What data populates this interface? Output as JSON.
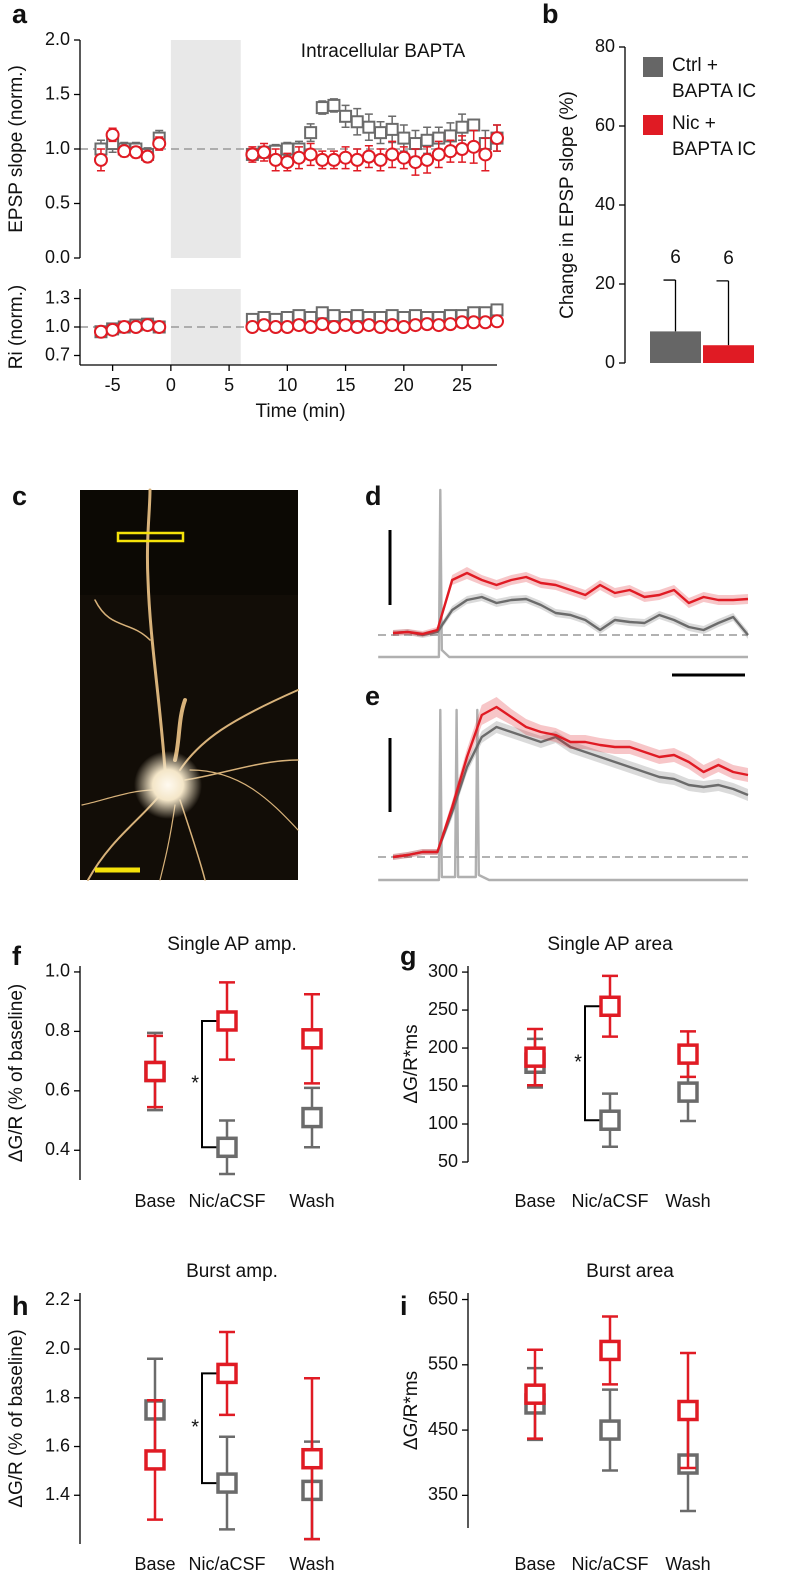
{
  "chart_data": [
    {
      "type": "scatter",
      "panel": "a",
      "ylabel": "EPSP slope (norm.)",
      "annotation": "Intracellular BAPTA",
      "x": [
        -6,
        -5,
        -4,
        -3,
        -2,
        -1,
        7,
        8,
        9,
        10,
        11,
        12,
        13,
        14,
        15,
        16,
        17,
        18,
        19,
        20,
        21,
        22,
        23,
        24,
        25,
        26,
        27,
        28
      ],
      "xlim": [
        -7.8,
        28
      ],
      "ylim": [
        0,
        2
      ],
      "yticks": [
        {
          "value": 0,
          "label": "0.0"
        },
        0.5,
        {
          "value": 1,
          "label": "1.0"
        },
        1.5,
        {
          "value": 2,
          "label": "2.0"
        }
      ],
      "shade": [
        0,
        6
      ],
      "hline": 1,
      "series": [
        {
          "color": "#6b6b6b",
          "marker": "square",
          "values": [
            1.0,
            1.05,
            1.0,
            1.0,
            0.95,
            1.1,
            0.95,
            0.97,
            0.98,
            1.0,
            1.0,
            1.15,
            1.38,
            1.4,
            1.3,
            1.25,
            1.2,
            1.15,
            1.18,
            1.1,
            1.05,
            1.08,
            1.1,
            1.12,
            1.2,
            1.22,
            1.05,
            1.1
          ],
          "errors": [
            0.08,
            0.08,
            0.06,
            0.06,
            0.06,
            0.07,
            0.05,
            0.05,
            0.06,
            0.06,
            0.07,
            0.08,
            0.06,
            0.06,
            0.1,
            0.12,
            0.12,
            0.1,
            0.12,
            0.12,
            0.12,
            0.12,
            0.1,
            0.12,
            0.12,
            0.05,
            0.12,
            0.12
          ]
        },
        {
          "color": "#e01b24",
          "marker": "circle",
          "values": [
            0.9,
            1.13,
            0.98,
            0.97,
            0.93,
            1.05,
            0.95,
            0.97,
            0.9,
            0.88,
            0.92,
            0.95,
            0.9,
            0.9,
            0.92,
            0.9,
            0.93,
            0.9,
            0.95,
            0.92,
            0.88,
            0.9,
            0.95,
            0.98,
            1.0,
            1.02,
            0.95,
            1.1
          ],
          "errors": [
            0.1,
            0.06,
            0.05,
            0.05,
            0.05,
            0.06,
            0.07,
            0.08,
            0.1,
            0.08,
            0.1,
            0.1,
            0.08,
            0.08,
            0.1,
            0.1,
            0.1,
            0.1,
            0.12,
            0.1,
            0.12,
            0.12,
            0.12,
            0.1,
            0.12,
            0.15,
            0.15,
            0.12
          ]
        }
      ]
    },
    {
      "type": "scatter",
      "ylabel": "Ri (norm.)",
      "xlabel": "Time (min)",
      "x": [
        -6,
        -5,
        -4,
        -3,
        -2,
        -1,
        7,
        8,
        9,
        10,
        11,
        12,
        13,
        14,
        15,
        16,
        17,
        18,
        19,
        20,
        21,
        22,
        23,
        24,
        25,
        26,
        27,
        28
      ],
      "xlim": [
        -7.8,
        28
      ],
      "ylim": [
        0.6,
        1.4
      ],
      "xticks": [
        -5,
        0,
        5,
        10,
        15,
        20,
        25
      ],
      "yticks": [
        0.7,
        {
          "value": 1,
          "label": "1.0"
        },
        1.3
      ],
      "shade": [
        0,
        6
      ],
      "hline": 1,
      "series": [
        {
          "color": "#6b6b6b",
          "marker": "square",
          "values": [
            0.95,
            0.98,
            1.0,
            1.02,
            1.03,
            1.0,
            1.08,
            1.1,
            1.08,
            1.1,
            1.12,
            1.1,
            1.15,
            1.12,
            1.1,
            1.12,
            1.1,
            1.1,
            1.12,
            1.1,
            1.12,
            1.1,
            1.1,
            1.12,
            1.12,
            1.15,
            1.15,
            1.18
          ],
          "errors": [
            0.05,
            0.05,
            0.05,
            0.05,
            0.05,
            0.05,
            0.05,
            0.05,
            0.05,
            0.05,
            0.05,
            0.05,
            0.05,
            0.05,
            0.05,
            0.05,
            0.05,
            0.05,
            0.05,
            0.05,
            0.05,
            0.05,
            0.05,
            0.05,
            0.05,
            0.05,
            0.05,
            0.05
          ]
        },
        {
          "color": "#e01b24",
          "marker": "circle",
          "values": [
            0.95,
            0.97,
            1.0,
            1.0,
            1.02,
            1.0,
            1.0,
            1.02,
            1.0,
            1.0,
            1.02,
            1.0,
            1.03,
            1.0,
            1.02,
            1.0,
            1.02,
            1.0,
            1.02,
            1.0,
            1.02,
            1.03,
            1.02,
            1.03,
            1.05,
            1.05,
            1.05,
            1.06
          ],
          "errors": [
            0.04,
            0.04,
            0.04,
            0.04,
            0.04,
            0.04,
            0.04,
            0.04,
            0.04,
            0.04,
            0.04,
            0.04,
            0.04,
            0.04,
            0.04,
            0.04,
            0.04,
            0.04,
            0.04,
            0.04,
            0.04,
            0.04,
            0.04,
            0.04,
            0.04,
            0.04,
            0.04,
            0.04
          ]
        }
      ]
    },
    {
      "type": "bar",
      "panel": "b",
      "ylabel": "Change in EPSP slope (%)",
      "ylim": [
        0,
        80
      ],
      "yticks": [
        0,
        20,
        40,
        60,
        80
      ],
      "series": [
        {
          "name": "Ctrl + BAPTA IC",
          "color": "#666666",
          "values": [
            8
          ],
          "errors": [
            13
          ],
          "n": [
            6
          ]
        },
        {
          "name": "Nic + BAPTA IC",
          "color": "#e01b24",
          "values": [
            4.5
          ],
          "errors": [
            16.3
          ],
          "n": [
            6
          ]
        }
      ]
    },
    {
      "type": "image",
      "panel": "c"
    },
    {
      "type": "line",
      "panel": "d",
      "x": [
        0,
        1,
        2,
        3,
        4,
        5,
        6,
        7,
        8,
        9,
        10,
        11,
        12,
        13,
        14,
        15,
        16,
        17,
        18,
        19,
        20,
        21,
        22,
        23,
        24
      ],
      "xlim": [
        0,
        24
      ],
      "ylim": [
        -0.25,
        1.45
      ],
      "hline": 0,
      "series": [
        {
          "color": "#b0b0b0",
          "x": [
            -1,
            3.1,
            3.2,
            3.3,
            3.8,
            24
          ],
          "values": [
            -0.22,
            -0.22,
            1.45,
            -0.15,
            -0.22,
            -0.22
          ]
        },
        {
          "color": "#6b6b6b",
          "values": [
            0.02,
            0.03,
            0.0,
            0.03,
            0.25,
            0.35,
            0.38,
            0.32,
            0.35,
            0.36,
            0.3,
            0.22,
            0.2,
            0.15,
            0.05,
            0.15,
            0.13,
            0.12,
            0.2,
            0.15,
            0.08,
            0.05,
            0.12,
            0.18,
            0.0
          ],
          "errors": [
            0.03,
            0.03,
            0.03,
            0.03,
            0.04,
            0.04,
            0.04,
            0.04,
            0.04,
            0.04,
            0.04,
            0.04,
            0.04,
            0.04,
            0.04,
            0.04,
            0.04,
            0.04,
            0.04,
            0.04,
            0.04,
            0.04,
            0.04,
            0.04,
            0.04
          ]
        },
        {
          "color": "#e01b24",
          "values": [
            0.02,
            0.03,
            0.01,
            0.05,
            0.55,
            0.62,
            0.55,
            0.5,
            0.55,
            0.58,
            0.52,
            0.5,
            0.45,
            0.4,
            0.5,
            0.42,
            0.45,
            0.38,
            0.4,
            0.45,
            0.32,
            0.38,
            0.35,
            0.35,
            0.36
          ],
          "errors": [
            0.03,
            0.03,
            0.03,
            0.03,
            0.05,
            0.06,
            0.05,
            0.05,
            0.05,
            0.05,
            0.05,
            0.05,
            0.05,
            0.05,
            0.05,
            0.05,
            0.05,
            0.05,
            0.05,
            0.05,
            0.05,
            0.05,
            0.05,
            0.05,
            0.05
          ]
        }
      ]
    },
    {
      "type": "line",
      "panel": "e",
      "x": [
        0,
        1,
        2,
        3,
        4,
        5,
        6,
        7,
        8,
        9,
        10,
        11,
        12,
        13,
        14,
        15,
        16,
        17,
        18,
        19,
        20,
        21,
        22,
        23,
        24
      ],
      "xlim": [
        0,
        24
      ],
      "ylim": [
        -0.25,
        1.52
      ],
      "hline": 0,
      "series": [
        {
          "color": "#b0b0b0",
          "x": [
            -1,
            3.1,
            3.2,
            3.3,
            4.2,
            4.3,
            4.4,
            5.6,
            5.7,
            5.8,
            6.5,
            24
          ],
          "values": [
            -0.23,
            -0.23,
            1.47,
            -0.2,
            -0.2,
            1.47,
            -0.2,
            -0.2,
            1.47,
            -0.18,
            -0.23,
            -0.23
          ]
        },
        {
          "color": "#6b6b6b",
          "values": [
            0.0,
            0.02,
            0.05,
            0.05,
            0.45,
            0.9,
            1.2,
            1.3,
            1.25,
            1.2,
            1.15,
            1.2,
            1.1,
            1.05,
            1.0,
            0.95,
            0.9,
            0.85,
            0.8,
            0.78,
            0.72,
            0.7,
            0.72,
            0.68,
            0.62
          ],
          "errors": [
            0.03,
            0.03,
            0.03,
            0.03,
            0.06,
            0.06,
            0.06,
            0.06,
            0.06,
            0.06,
            0.06,
            0.06,
            0.06,
            0.06,
            0.06,
            0.06,
            0.06,
            0.06,
            0.06,
            0.06,
            0.06,
            0.06,
            0.06,
            0.06,
            0.06
          ]
        },
        {
          "color": "#e01b24",
          "values": [
            0.0,
            0.02,
            0.05,
            0.05,
            0.5,
            1.0,
            1.42,
            1.5,
            1.4,
            1.3,
            1.25,
            1.22,
            1.15,
            1.15,
            1.12,
            1.1,
            1.1,
            1.05,
            1.0,
            1.02,
            0.95,
            0.85,
            0.92,
            0.85,
            0.82
          ],
          "errors": [
            0.03,
            0.03,
            0.03,
            0.03,
            0.06,
            0.08,
            0.1,
            0.1,
            0.08,
            0.08,
            0.07,
            0.07,
            0.07,
            0.07,
            0.07,
            0.07,
            0.07,
            0.07,
            0.07,
            0.07,
            0.07,
            0.07,
            0.07,
            0.07,
            0.07
          ]
        }
      ]
    },
    {
      "type": "point",
      "panel": "f",
      "title": "Single AP amp.",
      "ylabel": "ΔG/R (% of baseline)",
      "categories": [
        "Base",
        "Nic/aCSF",
        "Wash"
      ],
      "ylim": [
        0.3,
        1.02
      ],
      "yticks": [
        0.4,
        0.6,
        0.8,
        {
          "value": 1,
          "label": "1.0"
        }
      ],
      "series": [
        {
          "color": "#6b6b6b",
          "values": [
            0.665,
            0.41,
            0.51
          ],
          "errors": [
            0.13,
            0.09,
            0.1
          ]
        },
        {
          "color": "#e01b24",
          "values": [
            0.665,
            0.835,
            0.775
          ],
          "errors": [
            0.12,
            0.13,
            0.15
          ]
        }
      ],
      "significance": {
        "category": 1,
        "label": "*"
      }
    },
    {
      "type": "point",
      "panel": "g",
      "title": "Single AP area",
      "ylabel": "ΔG/R*ms",
      "categories": [
        "Base",
        "Nic/aCSF",
        "Wash"
      ],
      "ylim": [
        50,
        308
      ],
      "yticks": [
        50,
        100,
        150,
        200,
        250,
        300
      ],
      "series": [
        {
          "color": "#6b6b6b",
          "values": [
            180,
            105,
            142
          ],
          "errors": [
            32,
            35,
            38
          ]
        },
        {
          "color": "#e01b24",
          "values": [
            188,
            255,
            192
          ],
          "errors": [
            37,
            40,
            30
          ]
        }
      ],
      "significance": {
        "category": 1,
        "label": "*"
      }
    },
    {
      "type": "point",
      "panel": "h",
      "title": "Burst amp.",
      "ylabel": "ΔG/R (% of baseline)",
      "categories": [
        "Base",
        "Nic/aCSF",
        "Wash"
      ],
      "ylim": [
        1.2,
        2.23
      ],
      "yticks": [
        1.4,
        1.6,
        1.8,
        {
          "value": 2,
          "label": "2.0"
        },
        2.2
      ],
      "series": [
        {
          "color": "#6b6b6b",
          "values": [
            1.75,
            1.45,
            1.42
          ],
          "errors": [
            0.21,
            0.19,
            0.2
          ]
        },
        {
          "color": "#e01b24",
          "values": [
            1.545,
            1.9,
            1.55
          ],
          "errors": [
            0.245,
            0.17,
            0.33
          ]
        }
      ],
      "significance": {
        "category": 1,
        "label": "*"
      }
    },
    {
      "type": "point",
      "panel": "i",
      "title": "Burst area",
      "ylabel": "ΔG/R*ms",
      "categories": [
        "Base",
        "Nic/aCSF",
        "Wash"
      ],
      "ylim": [
        300,
        660
      ],
      "yticks": [
        350,
        450,
        550,
        650
      ],
      "series": [
        {
          "color": "#6b6b6b",
          "values": [
            490,
            450,
            398
          ],
          "errors": [
            55,
            62,
            72
          ]
        },
        {
          "color": "#e01b24",
          "values": [
            505,
            572,
            480
          ],
          "errors": [
            68,
            52,
            88
          ]
        }
      ]
    }
  ]
}
